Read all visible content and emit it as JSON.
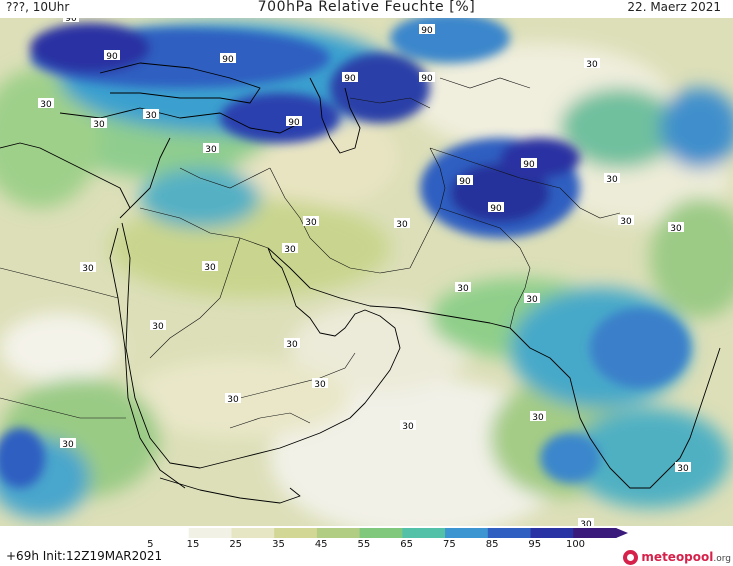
{
  "header": {
    "location": "???, 10Uhr",
    "title": "700hPa Relative Feuchte [%]",
    "date": "22. Maerz 2021"
  },
  "footer": {
    "run_info": "+69h Init:12Z19MAR2021",
    "brand_main": "meteopool",
    "brand_tld": ".org"
  },
  "colorbar": {
    "ticks": [
      "5",
      "15",
      "25",
      "35",
      "45",
      "55",
      "65",
      "75",
      "85",
      "95",
      "100"
    ],
    "colors": [
      "#ffffff",
      "#f1f1e6",
      "#e7e6c4",
      "#d2d796",
      "#b1cd84",
      "#7fc87c",
      "#53c1a8",
      "#3c95d0",
      "#2f5fc1",
      "#2a33a3",
      "#3a1a7a"
    ]
  },
  "contour_labels": [
    "90",
    "30"
  ],
  "map_style": {
    "background_color": "#dfe0bf",
    "border_color": "#000000",
    "label_background": "#ffffff"
  }
}
